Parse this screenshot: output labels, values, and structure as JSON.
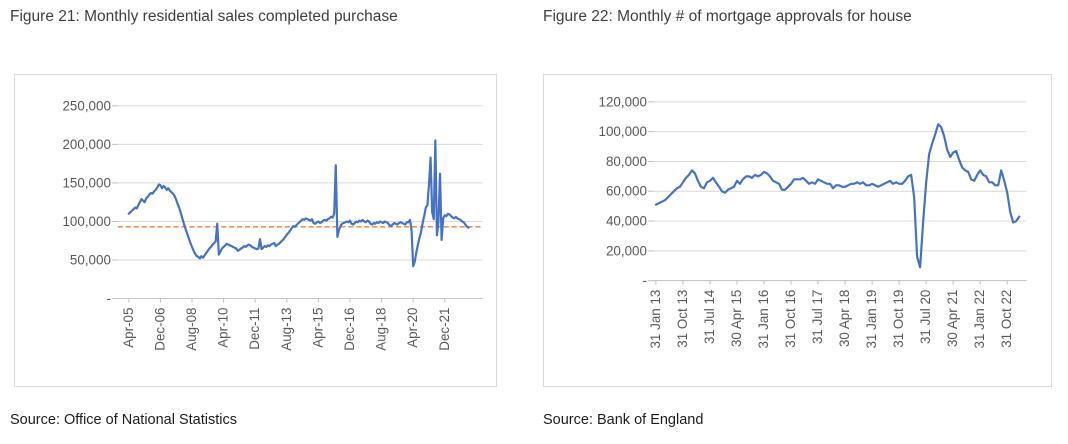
{
  "page": {
    "background": "#FFFFFF"
  },
  "colors": {
    "line_blue": "#4472C4",
    "reference_orange": "#ED7D31",
    "gridline": "#D9D9D9",
    "axis": "#BFBFBF",
    "title_text": "#3F3F3F",
    "tick_text": "#595959",
    "source_text": "#1C1C1C",
    "chart_border": "#D9D9D9"
  },
  "chart_data": [
    {
      "type": "line",
      "title": "Figure 21: Monthly residential sales completed purchase",
      "source": "Source: Office of National Statistics",
      "legend": "none",
      "grid": true,
      "x_axis": {
        "start_label": "Apr-05",
        "frequency": "monthly",
        "tick_interval_months": 20,
        "tick_labels": [
          "Apr-05",
          "Dec-06",
          "Aug-08",
          "Apr-10",
          "Dec-11",
          "Aug-13",
          "Apr-15",
          "Dec-16",
          "Aug-18",
          "Apr-20",
          "Dec-21"
        ]
      },
      "y_axis": {
        "lim": [
          0,
          250000
        ],
        "ticks": [
          {
            "label": "-",
            "value": 0
          },
          {
            "label": "50,000",
            "value": 50000
          },
          {
            "label": "100,000",
            "value": 100000
          },
          {
            "label": "150,000",
            "value": 150000
          },
          {
            "label": "200,000",
            "value": 200000
          },
          {
            "label": "250,000",
            "value": 250000
          }
        ]
      },
      "reference_line": {
        "value": 93000,
        "color": "#ED7D31",
        "style": "dashed"
      },
      "series": [
        {
          "name": "monthly-residential-sales",
          "color": "#4472C4",
          "values": [
            110000,
            112000,
            114000,
            116000,
            118000,
            117000,
            121000,
            125000,
            129000,
            127000,
            125000,
            130000,
            132000,
            135000,
            137000,
            136000,
            139000,
            141000,
            144000,
            148000,
            147000,
            143000,
            146000,
            144000,
            141000,
            143000,
            140000,
            138000,
            136000,
            133000,
            128000,
            122000,
            117000,
            110000,
            103000,
            96000,
            90000,
            84000,
            78000,
            72000,
            67000,
            62000,
            58000,
            55000,
            54000,
            52000,
            55000,
            53000,
            56000,
            59000,
            62000,
            65000,
            67000,
            70000,
            72000,
            74000,
            97000,
            57000,
            61000,
            65000,
            67000,
            69000,
            71000,
            70000,
            69000,
            68000,
            67000,
            66000,
            65000,
            62000,
            63000,
            65000,
            66000,
            68000,
            67000,
            69000,
            70000,
            69000,
            67000,
            66000,
            65000,
            64000,
            65000,
            77000,
            64000,
            66000,
            68000,
            67000,
            69000,
            68000,
            70000,
            71000,
            72000,
            68000,
            70000,
            71000,
            73000,
            75000,
            77000,
            80000,
            83000,
            85000,
            88000,
            91000,
            94000,
            93000,
            95000,
            97000,
            99000,
            101000,
            103000,
            102000,
            104000,
            103000,
            102000,
            101000,
            103000,
            98000,
            97000,
            99000,
            100000,
            98000,
            99000,
            101000,
            102000,
            101000,
            103000,
            104000,
            106000,
            105000,
            110000,
            173000,
            80000,
            89000,
            94000,
            97000,
            98000,
            99000,
            100000,
            99000,
            101000,
            97000,
            96000,
            98000,
            100000,
            99000,
            101000,
            100000,
            102000,
            100000,
            99000,
            101000,
            100000,
            97000,
            96000,
            98000,
            97000,
            99000,
            98000,
            100000,
            99000,
            98000,
            100000,
            99000,
            98000,
            95000,
            94000,
            96000,
            98000,
            97000,
            96000,
            98000,
            99000,
            98000,
            97000,
            96000,
            99000,
            99000,
            102000,
            88000,
            42000,
            48000,
            60000,
            70000,
            79000,
            87000,
            98000,
            107000,
            118000,
            121000,
            148000,
            183000,
            112000,
            103000,
            205000,
            82000,
            99000,
            162000,
            76000,
            104000,
            108000,
            107000,
            110000,
            109000,
            107000,
            105000,
            104000,
            106000,
            104000,
            103000,
            102000,
            100000,
            99000,
            96000,
            93000,
            92000
          ]
        }
      ]
    },
    {
      "type": "line",
      "title": "Figure 22: Monthly # of mortgage approvals for house",
      "source": "Source: Bank of England",
      "legend": "none",
      "grid": true,
      "x_axis": {
        "start_label": "31 Jan 13",
        "frequency": "monthly",
        "tick_interval_months": 9,
        "tick_labels": [
          "31 Jan 13",
          "31 Oct 13",
          "31 Jul 14",
          "30 Apr 15",
          "31 Jan 16",
          "31 Oct 16",
          "31 Jul 17",
          "30 Apr 18",
          "31 Jan 19",
          "31 Oct 19",
          "31 Jul 20",
          "30 Apr 21",
          "31 Jan 22",
          "31 Oct 22"
        ]
      },
      "y_axis": {
        "lim": [
          0,
          120000
        ],
        "ticks": [
          {
            "label": "-",
            "value": 0
          },
          {
            "label": "20,000",
            "value": 20000
          },
          {
            "label": "40,000",
            "value": 40000
          },
          {
            "label": "60,000",
            "value": 60000
          },
          {
            "label": "80,000",
            "value": 80000
          },
          {
            "label": "100,000",
            "value": 100000
          },
          {
            "label": "120,000",
            "value": 120000
          }
        ]
      },
      "series": [
        {
          "name": "mortgage-approvals",
          "color": "#4472C4",
          "values": [
            51000,
            52000,
            53000,
            54000,
            56000,
            58000,
            60000,
            62000,
            63000,
            66000,
            69000,
            71000,
            74000,
            72000,
            67000,
            63000,
            62000,
            66000,
            67000,
            69000,
            66000,
            63000,
            60000,
            59000,
            61000,
            62000,
            63000,
            67000,
            65000,
            68000,
            70000,
            70000,
            69000,
            71000,
            70000,
            71000,
            73000,
            72000,
            70000,
            67000,
            66000,
            65000,
            61000,
            61000,
            63000,
            65000,
            68000,
            68000,
            68000,
            69000,
            67000,
            65000,
            66000,
            65000,
            68000,
            67000,
            66000,
            65000,
            65000,
            62000,
            64000,
            64000,
            63000,
            63000,
            64000,
            65000,
            65000,
            66000,
            65000,
            66000,
            64000,
            64000,
            65000,
            64000,
            63000,
            64000,
            65000,
            66000,
            67000,
            65000,
            66000,
            65000,
            65000,
            67000,
            70000,
            71000,
            56000,
            16000,
            9000,
            40000,
            66000,
            85000,
            92000,
            98000,
            105000,
            103000,
            97000,
            88000,
            83000,
            86000,
            87000,
            81000,
            76000,
            74000,
            73000,
            68000,
            67000,
            71000,
            74000,
            71000,
            70000,
            66000,
            66000,
            64000,
            64000,
            74000,
            67000,
            59000,
            46000,
            39000,
            40000,
            43000
          ]
        }
      ]
    }
  ]
}
